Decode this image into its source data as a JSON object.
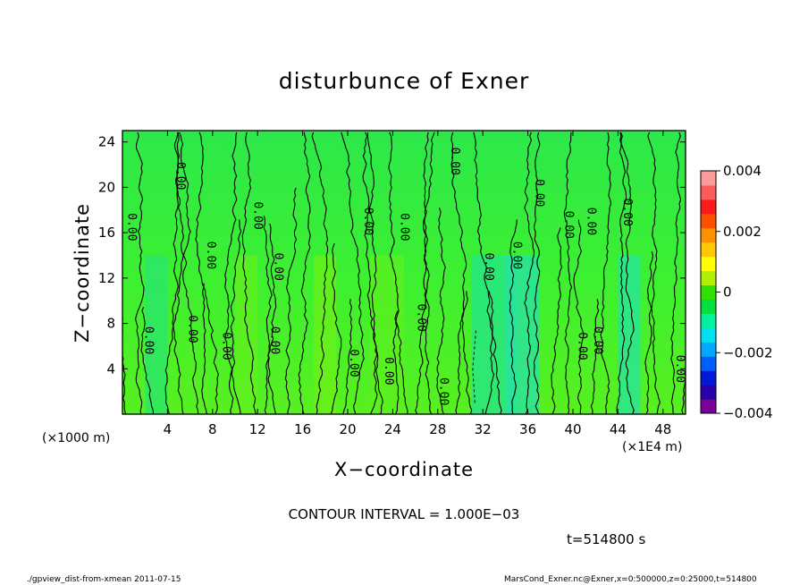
{
  "title": "disturbunce of Exner",
  "xlabel": "X−coordinate",
  "ylabel": "Z−coordinate",
  "x_unit": "(×1000 m)",
  "x_scale_note": "(×1E4 m)",
  "contour_interval_text": "CONTOUR INTERVAL = 1.000E−03",
  "time_text": "t=514800 s",
  "footer_left": "./gpview_dist-from-xmean  2011-07-15",
  "footer_right": "MarsCond_Exner.nc@Exner,x=0:500000,z=0:25000,t=514800",
  "chart_data": {
    "type": "heatmap",
    "title": "disturbunce of Exner",
    "xlabel": "X−coordinate",
    "ylabel": "Z−coordinate",
    "xlim": [
      0,
      50
    ],
    "ylim": [
      0,
      25
    ],
    "x_ticks": [
      4,
      8,
      12,
      16,
      20,
      24,
      28,
      32,
      36,
      40,
      44,
      48
    ],
    "y_ticks": [
      4,
      8,
      12,
      16,
      20,
      24
    ],
    "colorbar": {
      "range": [
        -0.004,
        0.004
      ],
      "tick_values": [
        0.004,
        0.002,
        0,
        -0.002,
        -0.004
      ],
      "tick_labels": [
        "0.004",
        "0.002",
        "0",
        "−0.002",
        "−0.004"
      ],
      "colors": [
        "#7a0099",
        "#2a00aa",
        "#0018d8",
        "#0060ff",
        "#00a8ff",
        "#00e0f0",
        "#00f0a0",
        "#00e040",
        "#30e000",
        "#b0f000",
        "#ffff00",
        "#ffc800",
        "#ff9000",
        "#ff5000",
        "#ff1a1a",
        "#ff5a5a",
        "#ff9a9a"
      ]
    },
    "contour_interval": 0.001,
    "contour_labels": [
      {
        "x": 0.8,
        "z": 16.5,
        "text": "0.00"
      },
      {
        "x": 2.3,
        "z": 6.5,
        "text": "0.00"
      },
      {
        "x": 5.1,
        "z": 21.0,
        "text": "0.00"
      },
      {
        "x": 6.2,
        "z": 7.5,
        "text": "0.00"
      },
      {
        "x": 7.8,
        "z": 14.0,
        "text": "0.00"
      },
      {
        "x": 9.2,
        "z": 6.0,
        "text": "0.00"
      },
      {
        "x": 12.0,
        "z": 17.5,
        "text": "0.00"
      },
      {
        "x": 13.8,
        "z": 13.0,
        "text": "0.00"
      },
      {
        "x": 13.5,
        "z": 6.5,
        "text": "0.00"
      },
      {
        "x": 20.5,
        "z": 4.5,
        "text": "0.00"
      },
      {
        "x": 21.8,
        "z": 17.0,
        "text": "0.00"
      },
      {
        "x": 23.6,
        "z": 3.8,
        "text": "0.00"
      },
      {
        "x": 25.0,
        "z": 16.5,
        "text": "0.00"
      },
      {
        "x": 26.5,
        "z": 8.5,
        "text": "0.00"
      },
      {
        "x": 28.5,
        "z": 2.0,
        "text": "0.00"
      },
      {
        "x": 29.5,
        "z": 22.3,
        "text": "0.00"
      },
      {
        "x": 32.5,
        "z": 13.0,
        "text": "0.00"
      },
      {
        "x": 35.0,
        "z": 14.0,
        "text": "0.00"
      },
      {
        "x": 37.0,
        "z": 19.5,
        "text": "0.00"
      },
      {
        "x": 39.6,
        "z": 16.7,
        "text": "0.00"
      },
      {
        "x": 41.6,
        "z": 17.0,
        "text": "0.00"
      },
      {
        "x": 40.8,
        "z": 6.0,
        "text": "0.00"
      },
      {
        "x": 42.2,
        "z": 6.5,
        "text": "0.00"
      },
      {
        "x": 44.8,
        "z": 17.8,
        "text": "0.00"
      },
      {
        "x": 49.5,
        "z": 4.0,
        "text": "0.00"
      }
    ]
  }
}
